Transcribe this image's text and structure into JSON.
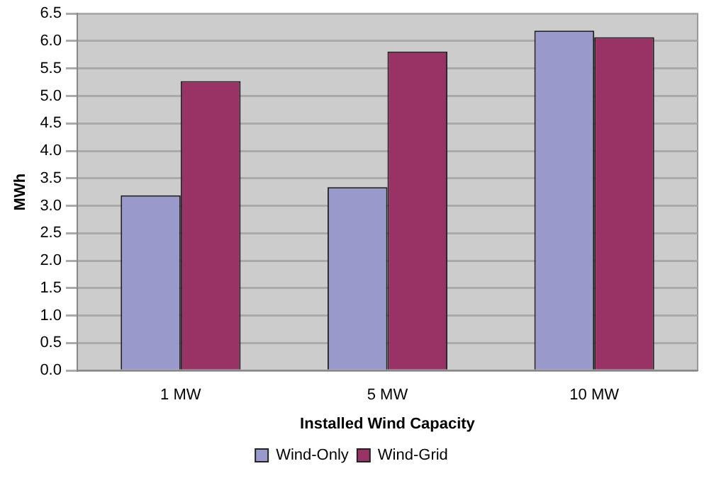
{
  "chart_data": {
    "type": "bar",
    "xlabel": "Installed Wind Capacity",
    "ylabel": "MWh",
    "categories": [
      "1 MW",
      "5 MW",
      "10 MW"
    ],
    "series": [
      {
        "name": "Wind-Only",
        "color": "#9999cc",
        "values": [
          3.19,
          3.34,
          6.19
        ]
      },
      {
        "name": "Wind-Grid",
        "color": "#993366",
        "values": [
          5.27,
          5.81,
          6.07
        ]
      }
    ],
    "ylim": [
      0,
      6.5
    ],
    "yticks": [
      {
        "value": 0,
        "label": "0.0"
      },
      {
        "value": 0.5,
        "label": "0.5"
      },
      {
        "value": 1,
        "label": "1.0"
      },
      {
        "value": 1.5,
        "label": "1.5"
      },
      {
        "value": 2,
        "label": "2.0"
      },
      {
        "value": 2.5,
        "label": "2.5"
      },
      {
        "value": 3,
        "label": "3.0"
      },
      {
        "value": 3.5,
        "label": "3.5"
      },
      {
        "value": 4,
        "label": "4.0"
      },
      {
        "value": 4.5,
        "label": "4.5"
      },
      {
        "value": 5,
        "label": "5.0"
      },
      {
        "value": 5.5,
        "label": "5.5"
      },
      {
        "value": 6,
        "label": "6.0"
      },
      {
        "value": 6.5,
        "label": "6.5"
      }
    ],
    "grid": "y",
    "legend": "bottom"
  }
}
